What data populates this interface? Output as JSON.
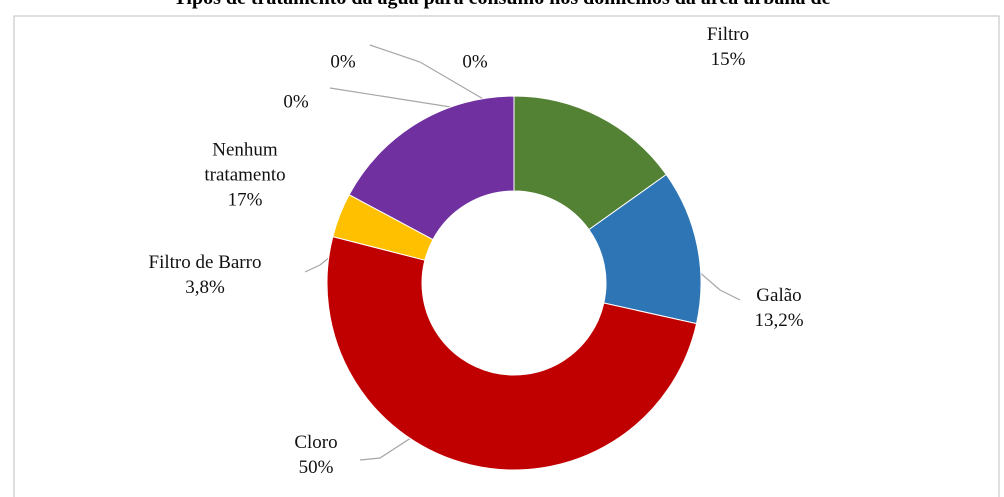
{
  "chart_data": {
    "type": "donut",
    "title": "Tipos de tratamento da água para consumo nos domicílios da área urbana de",
    "categories": [
      "Filtro",
      "Galão",
      "Cloro",
      "Filtro de Barro",
      "Nenhum tratamento",
      null,
      null,
      null
    ],
    "values": [
      15,
      13.2,
      50,
      3.8,
      17,
      0,
      0,
      0
    ],
    "value_labels": [
      "15%",
      "13,2%",
      "50%",
      "3,8%",
      "17%",
      "0%",
      "0%",
      "0%"
    ],
    "colors": [
      "#548235",
      "#2e75b6",
      "#c00000",
      "#ffc000",
      "#7030a0",
      "#a5a5a5",
      "#a5a5a5",
      "#a5a5a5"
    ]
  }
}
